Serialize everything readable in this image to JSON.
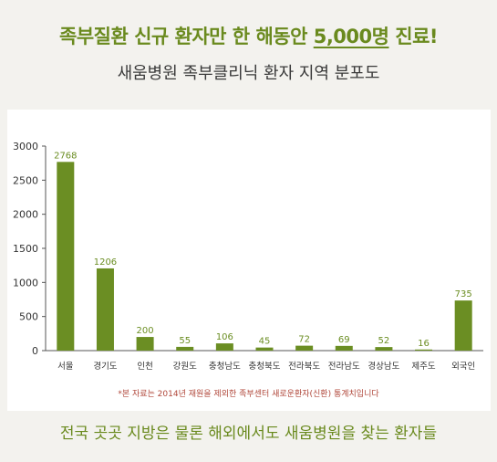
{
  "header": {
    "headline_before": "족부질환 신규 환자만 한 해동안 ",
    "headline_highlight": "5,000명",
    "headline_after": " 진료!",
    "subtitle": "새움병원 족부클리닉 환자 지역 분포도"
  },
  "chart_data": {
    "type": "bar",
    "categories": [
      "서울",
      "경기도",
      "인천",
      "강원도",
      "충청남도",
      "충청북도",
      "전라북도",
      "전라남도",
      "경상남도",
      "제주도",
      "외국인"
    ],
    "values": [
      2768,
      1206,
      200,
      55,
      106,
      45,
      72,
      69,
      52,
      16,
      735
    ],
    "data_labels": [
      "2768",
      "1206",
      "200",
      "55",
      "106",
      "45",
      "72",
      "69",
      "52",
      "16",
      "735"
    ],
    "yticks": [
      0,
      500,
      1000,
      1500,
      2000,
      2500,
      3000
    ],
    "ylim": [
      0,
      3000
    ],
    "grid": false,
    "bar_color": "#6b8e23",
    "label_color": "#6b8e23"
  },
  "footnote": "*본 자료는 2014년 재원을 제외한 족부센터 새로운환자(신환) 통계치입니다",
  "tagline": "전국 곳곳 지방은 물론 해외에서도 새움병원을 찾는 환자들"
}
